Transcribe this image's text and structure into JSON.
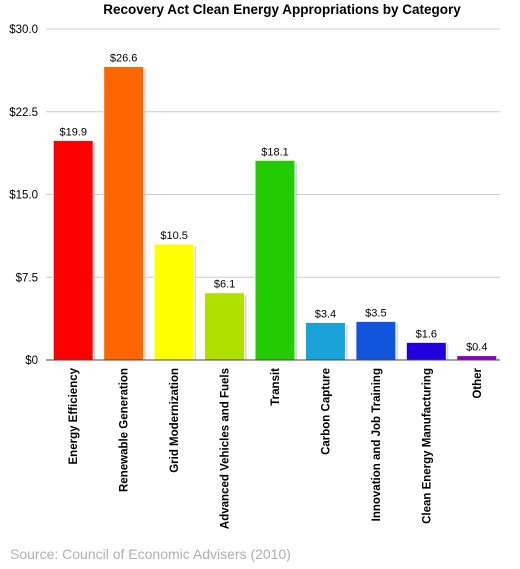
{
  "chart_data": {
    "type": "bar",
    "title": "Recovery Act Clean Energy Appropriations by Category",
    "xlabel": "",
    "ylabel": "",
    "ylim": [
      0,
      30
    ],
    "yticks": [
      "$0",
      "$7.5",
      "$15.0",
      "$22.5",
      "$30.0"
    ],
    "ytick_values": [
      0,
      7.5,
      15,
      22.5,
      30
    ],
    "grid": true,
    "legend": "none",
    "categories": [
      "Energy Efficiency",
      "Renewable Generation",
      "Grid Modernization",
      "Advanced Vehicles and Fuels",
      "Transit",
      "Carbon Capture",
      "Innovation and Job Training",
      "Clean Energy Manufacturing",
      "Other"
    ],
    "values": [
      19.9,
      26.6,
      10.5,
      6.1,
      18.1,
      3.4,
      3.5,
      1.6,
      0.4
    ],
    "data_labels": [
      "$19.9",
      "$26.6",
      "$10.5",
      "$6.1",
      "$18.1",
      "$3.4",
      "$3.5",
      "$1.6",
      "$0.4"
    ],
    "colors": [
      "#ff0000",
      "#ff6600",
      "#ffff00",
      "#b0e000",
      "#22cc00",
      "#1aa3d9",
      "#1155dd",
      "#2200dd",
      "#8800cc"
    ],
    "source": "Source: Council of Economic Advisers (2010)"
  }
}
